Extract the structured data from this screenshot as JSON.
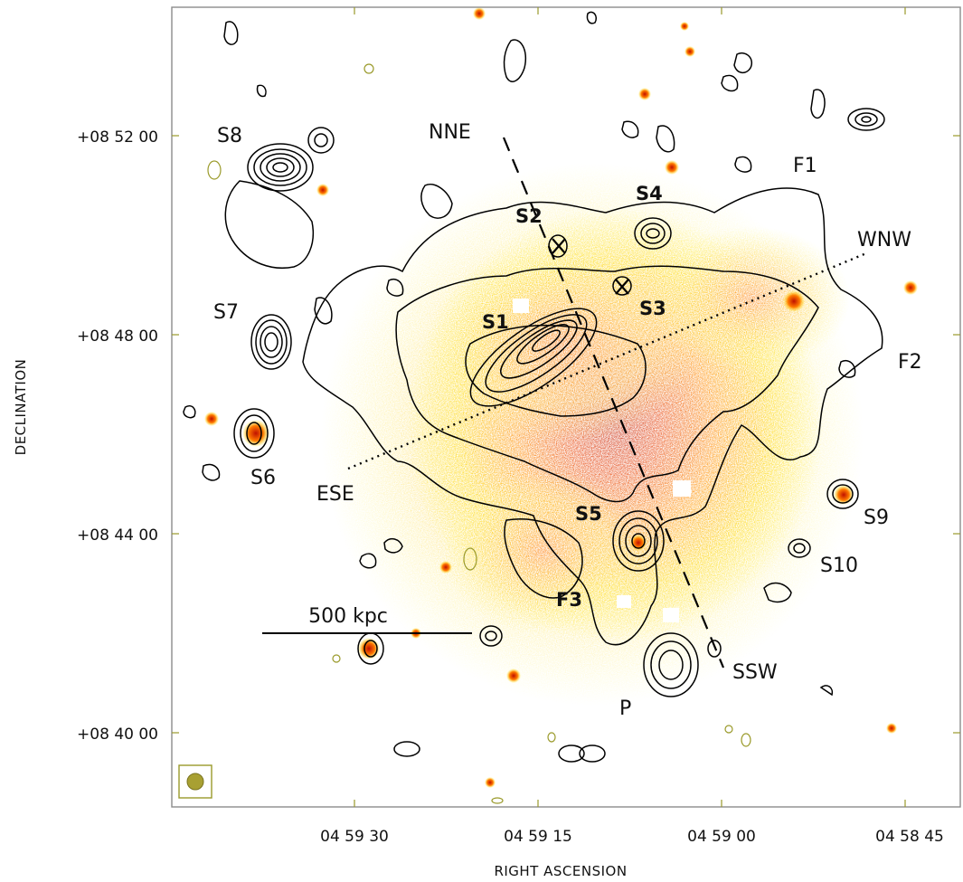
{
  "map": {
    "x_axis_title": "RIGHT ASCENSION",
    "y_axis_title": "DECLINATION",
    "x_tick_labels": [
      "04 59 30",
      "04 59 15",
      "04 59 00",
      "04 58 45"
    ],
    "y_tick_labels": [
      "+08 52 00",
      "+08 48 00",
      "+08 44 00",
      "+08 40 00"
    ],
    "scale_bar_label": "500 kpc",
    "direction_labels": [
      "NNE",
      "WNW",
      "ESE",
      "SSW"
    ],
    "source_labels_plain": [
      "S8",
      "S7",
      "S6",
      "F1",
      "F2",
      "S9",
      "S10",
      "P"
    ],
    "source_labels_bold": [
      "S1",
      "S2",
      "S3",
      "S4",
      "S5",
      "F3"
    ],
    "colors": {
      "frame": "#8c8c8c",
      "ticks": "#9a9a2a",
      "beam": "#a8a032",
      "emission_core": "#b01000",
      "emission_mid": "#ff6a00",
      "emission_outer": "#ffee00",
      "contours": "#000000"
    }
  }
}
